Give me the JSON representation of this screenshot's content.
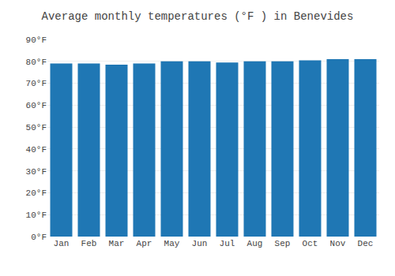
{
  "chart_data": {
    "type": "bar",
    "title": "Average monthly temperatures (°F ) in Benevides",
    "categories": [
      "Jan",
      "Feb",
      "Mar",
      "Apr",
      "May",
      "Jun",
      "Jul",
      "Aug",
      "Sep",
      "Oct",
      "Nov",
      "Dec"
    ],
    "values": [
      79,
      79,
      78.5,
      79,
      80,
      80,
      79.5,
      80,
      80,
      80.5,
      81,
      81
    ],
    "ylim": [
      0,
      90
    ],
    "yticks": [
      {
        "value": 0,
        "label": "0°F"
      },
      {
        "value": 10,
        "label": "10°F"
      },
      {
        "value": 20,
        "label": "20°F"
      },
      {
        "value": 30,
        "label": "30°F"
      },
      {
        "value": 40,
        "label": "40°F"
      },
      {
        "value": 50,
        "label": "50°F"
      },
      {
        "value": 60,
        "label": "60°F"
      },
      {
        "value": 70,
        "label": "70°F"
      },
      {
        "value": 80,
        "label": "80°F"
      },
      {
        "value": 90,
        "label": "90°F"
      }
    ],
    "grid": true
  }
}
